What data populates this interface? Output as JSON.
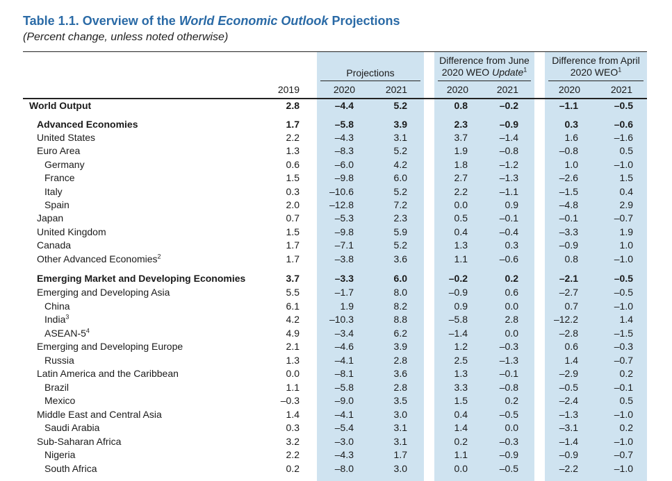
{
  "title": {
    "prefix": "Table 1.1. Overview of the ",
    "italic": "World Economic Outlook",
    "suffix": " Projections"
  },
  "subtitle": "(Percent change, unless noted otherwise)",
  "headers": {
    "projections": "Projections",
    "diff_june_line1": "Difference from June",
    "diff_june_line2_prefix": "2020 WEO ",
    "diff_june_line2_italic": "Update",
    "diff_june_sup": "1",
    "diff_april_line1": "Difference from April",
    "diff_april_line2": "2020 WEO",
    "diff_april_sup": "1",
    "years": [
      "2019",
      "2020",
      "2021",
      "2020",
      "2021",
      "2020",
      "2021"
    ]
  },
  "colors": {
    "title": "#2a6aa6",
    "band": "#cfe3f0"
  },
  "rows": [
    {
      "label": "World Output",
      "sup": "",
      "indent": 0,
      "bold": true,
      "values": [
        "2.8",
        "–4.4",
        "5.2",
        "0.8",
        "–0.2",
        "–1.1",
        "–0.5"
      ]
    },
    {
      "label": "Advanced Economies",
      "sup": "",
      "indent": 1,
      "bold": true,
      "values": [
        "1.7",
        "–5.8",
        "3.9",
        "2.3",
        "–0.9",
        "0.3",
        "–0.6"
      ]
    },
    {
      "label": "United States",
      "sup": "",
      "indent": 1,
      "bold": false,
      "values": [
        "2.2",
        "–4.3",
        "3.1",
        "3.7",
        "–1.4",
        "1.6",
        "–1.6"
      ]
    },
    {
      "label": "Euro Area",
      "sup": "",
      "indent": 1,
      "bold": false,
      "values": [
        "1.3",
        "–8.3",
        "5.2",
        "1.9",
        "–0.8",
        "–0.8",
        "0.5"
      ]
    },
    {
      "label": "Germany",
      "sup": "",
      "indent": 2,
      "bold": false,
      "values": [
        "0.6",
        "–6.0",
        "4.2",
        "1.8",
        "–1.2",
        "1.0",
        "–1.0"
      ]
    },
    {
      "label": "France",
      "sup": "",
      "indent": 2,
      "bold": false,
      "values": [
        "1.5",
        "–9.8",
        "6.0",
        "2.7",
        "–1.3",
        "–2.6",
        "1.5"
      ]
    },
    {
      "label": "Italy",
      "sup": "",
      "indent": 2,
      "bold": false,
      "values": [
        "0.3",
        "–10.6",
        "5.2",
        "2.2",
        "–1.1",
        "–1.5",
        "0.4"
      ]
    },
    {
      "label": "Spain",
      "sup": "",
      "indent": 2,
      "bold": false,
      "values": [
        "2.0",
        "–12.8",
        "7.2",
        "0.0",
        "0.9",
        "–4.8",
        "2.9"
      ]
    },
    {
      "label": "Japan",
      "sup": "",
      "indent": 1,
      "bold": false,
      "values": [
        "0.7",
        "–5.3",
        "2.3",
        "0.5",
        "–0.1",
        "–0.1",
        "–0.7"
      ]
    },
    {
      "label": "United Kingdom",
      "sup": "",
      "indent": 1,
      "bold": false,
      "values": [
        "1.5",
        "–9.8",
        "5.9",
        "0.4",
        "–0.4",
        "–3.3",
        "1.9"
      ]
    },
    {
      "label": "Canada",
      "sup": "",
      "indent": 1,
      "bold": false,
      "values": [
        "1.7",
        "–7.1",
        "5.2",
        "1.3",
        "0.3",
        "–0.9",
        "1.0"
      ]
    },
    {
      "label": "Other Advanced Economies",
      "sup": "2",
      "indent": 1,
      "bold": false,
      "values": [
        "1.7",
        "–3.8",
        "3.6",
        "1.1",
        "–0.6",
        "0.8",
        "–1.0"
      ]
    },
    {
      "label": "Emerging Market and Developing Economies",
      "sup": "",
      "indent": 1,
      "bold": true,
      "values": [
        "3.7",
        "–3.3",
        "6.0",
        "–0.2",
        "0.2",
        "–2.1",
        "–0.5"
      ]
    },
    {
      "label": "Emerging and Developing Asia",
      "sup": "",
      "indent": 1,
      "bold": false,
      "values": [
        "5.5",
        "–1.7",
        "8.0",
        "–0.9",
        "0.6",
        "–2.7",
        "–0.5"
      ]
    },
    {
      "label": "China",
      "sup": "",
      "indent": 2,
      "bold": false,
      "values": [
        "6.1",
        "1.9",
        "8.2",
        "0.9",
        "0.0",
        "0.7",
        "–1.0"
      ]
    },
    {
      "label": "India",
      "sup": "3",
      "indent": 2,
      "bold": false,
      "values": [
        "4.2",
        "–10.3",
        "8.8",
        "–5.8",
        "2.8",
        "–12.2",
        "1.4"
      ]
    },
    {
      "label": "ASEAN-5",
      "sup": "4",
      "indent": 2,
      "bold": false,
      "values": [
        "4.9",
        "–3.4",
        "6.2",
        "–1.4",
        "0.0",
        "–2.8",
        "–1.5"
      ]
    },
    {
      "label": "Emerging and Developing Europe",
      "sup": "",
      "indent": 1,
      "bold": false,
      "values": [
        "2.1",
        "–4.6",
        "3.9",
        "1.2",
        "–0.3",
        "0.6",
        "–0.3"
      ]
    },
    {
      "label": "Russia",
      "sup": "",
      "indent": 2,
      "bold": false,
      "values": [
        "1.3",
        "–4.1",
        "2.8",
        "2.5",
        "–1.3",
        "1.4",
        "–0.7"
      ]
    },
    {
      "label": "Latin America and the Caribbean",
      "sup": "",
      "indent": 1,
      "bold": false,
      "values": [
        "0.0",
        "–8.1",
        "3.6",
        "1.3",
        "–0.1",
        "–2.9",
        "0.2"
      ]
    },
    {
      "label": "Brazil",
      "sup": "",
      "indent": 2,
      "bold": false,
      "values": [
        "1.1",
        "–5.8",
        "2.8",
        "3.3",
        "–0.8",
        "–0.5",
        "–0.1"
      ]
    },
    {
      "label": "Mexico",
      "sup": "",
      "indent": 2,
      "bold": false,
      "values": [
        "–0.3",
        "–9.0",
        "3.5",
        "1.5",
        "0.2",
        "–2.4",
        "0.5"
      ]
    },
    {
      "label": "Middle East and Central Asia",
      "sup": "",
      "indent": 1,
      "bold": false,
      "values": [
        "1.4",
        "–4.1",
        "3.0",
        "0.4",
        "–0.5",
        "–1.3",
        "–1.0"
      ]
    },
    {
      "label": "Saudi Arabia",
      "sup": "",
      "indent": 2,
      "bold": false,
      "values": [
        "0.3",
        "–5.4",
        "3.1",
        "1.4",
        "0.0",
        "–3.1",
        "0.2"
      ]
    },
    {
      "label": "Sub-Saharan Africa",
      "sup": "",
      "indent": 1,
      "bold": false,
      "values": [
        "3.2",
        "–3.0",
        "3.1",
        "0.2",
        "–0.3",
        "–1.4",
        "–1.0"
      ]
    },
    {
      "label": "Nigeria",
      "sup": "",
      "indent": 2,
      "bold": false,
      "values": [
        "2.2",
        "–4.3",
        "1.7",
        "1.1",
        "–0.9",
        "–0.9",
        "–0.7"
      ]
    },
    {
      "label": "South Africa",
      "sup": "",
      "indent": 2,
      "bold": false,
      "values": [
        "0.2",
        "–8.0",
        "3.0",
        "0.0",
        "–0.5",
        "–2.2",
        "–1.0"
      ]
    }
  ]
}
